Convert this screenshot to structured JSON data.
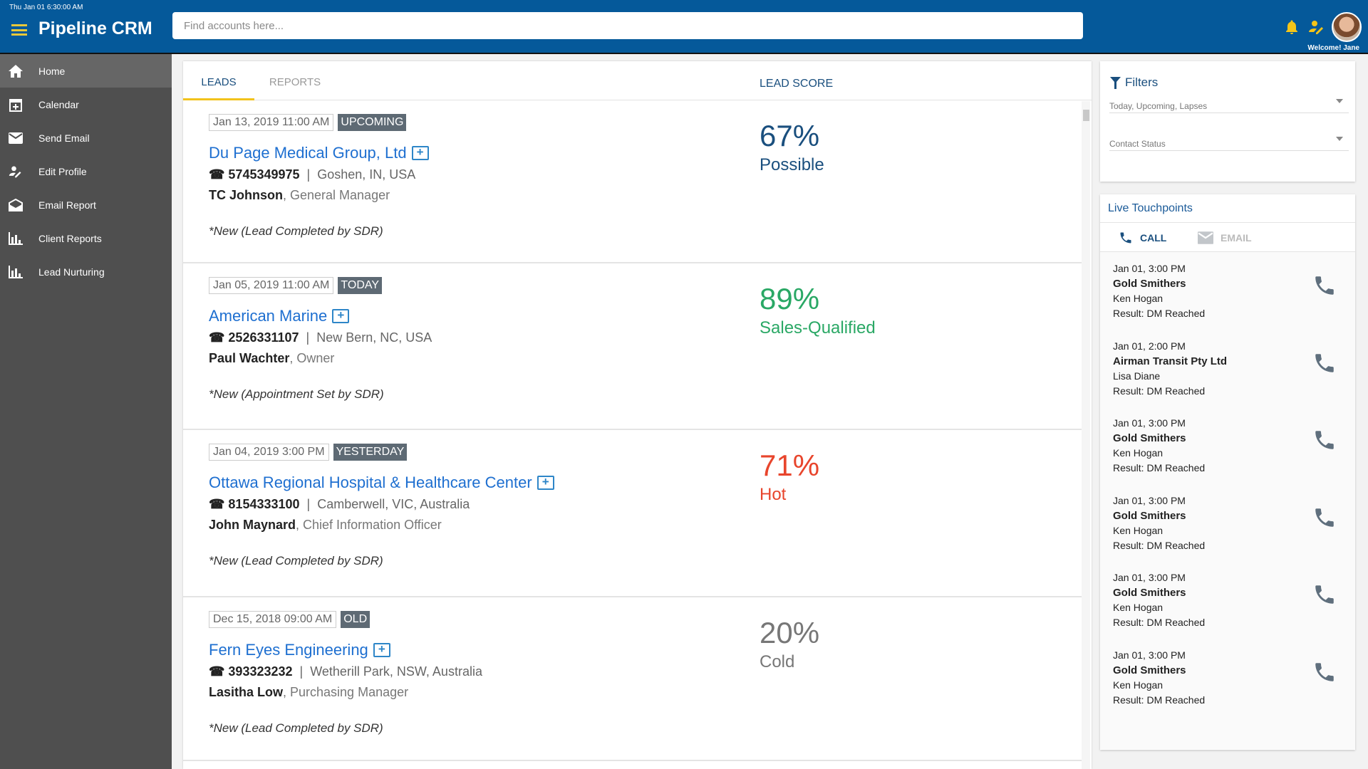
{
  "header": {
    "clock": "Thu Jan 01 6:30:00 AM",
    "title": "Pipeline CRM",
    "search_placeholder": "Find accounts here...",
    "welcome": "Welcome! Jane"
  },
  "sidebar": {
    "items": [
      {
        "label": "Home",
        "icon": "home-icon"
      },
      {
        "label": "Calendar",
        "icon": "calendar-icon"
      },
      {
        "label": "Send Email",
        "icon": "email-icon"
      },
      {
        "label": "Edit Profile",
        "icon": "edit-profile-icon"
      },
      {
        "label": "Email Report",
        "icon": "email-report-icon"
      },
      {
        "label": "Client Reports",
        "icon": "bar-chart-icon"
      },
      {
        "label": "Lead Nurturing",
        "icon": "bar-chart-icon"
      }
    ]
  },
  "main": {
    "tabs": [
      "LEADS",
      "REPORTS"
    ],
    "lead_score_header": "LEAD SCORE",
    "leads": [
      {
        "date": "Jan 13, 2019 11:00 AM",
        "badge": "UPCOMING",
        "company": "Du Page Medical Group, Ltd",
        "phone": "5745349975",
        "location": "Goshen, IN, USA",
        "contact": "TC Johnson",
        "role": ", General Manager",
        "note": "*New (Lead Completed by SDR)",
        "score": "67%",
        "score_label": "Possible",
        "color": "#1a4f7e"
      },
      {
        "date": "Jan 05, 2019 11:00 AM",
        "badge": "TODAY",
        "company": "American Marine",
        "phone": "2526331107",
        "location": "New Bern, NC, USA",
        "contact": "Paul Wachter",
        "role": ", Owner",
        "note": "*New (Appointment Set by SDR)",
        "score": "89%",
        "score_label": "Sales-Qualified",
        "color": "#2aa865"
      },
      {
        "date": "Jan 04, 2019 3:00 PM",
        "badge": "YESTERDAY",
        "company": "Ottawa Regional Hospital & Healthcare Center",
        "phone": "8154333100",
        "location": "Camberwell, VIC, Australia",
        "contact": "John Maynard",
        "role": ", Chief Information Officer",
        "note": "*New (Lead Completed by SDR)",
        "score": "71%",
        "score_label": "Hot",
        "color": "#e8452c"
      },
      {
        "date": "Dec 15, 2018 09:00 AM",
        "badge": "OLD",
        "company": "Fern Eyes Engineering",
        "phone": "393323232",
        "location": "Wetherill Park, NSW, Australia",
        "contact": "Lasitha Low",
        "role": ", Purchasing Manager",
        "note": "*New (Lead Completed by SDR)",
        "score": "20%",
        "score_label": "Cold",
        "color": "#777777"
      }
    ]
  },
  "filters": {
    "title": "Filters",
    "select1": "Today, Upcoming, Lapses",
    "select2": "Contact Status"
  },
  "touchpoints": {
    "title": "Live Touchpoints",
    "tabs": [
      "CALL",
      "EMAIL"
    ],
    "items": [
      {
        "time": "Jan 01, 3:00 PM",
        "company": "Gold Smithers",
        "contact": "Ken Hogan",
        "result": "Result: DM Reached"
      },
      {
        "time": "Jan 01, 2:00 PM",
        "company": "Airman Transit Pty Ltd",
        "contact": "Lisa Diane",
        "result": "Result: DM Reached"
      },
      {
        "time": "Jan 01, 3:00 PM",
        "company": "Gold Smithers",
        "contact": "Ken Hogan",
        "result": "Result: DM Reached"
      },
      {
        "time": "Jan 01, 3:00 PM",
        "company": "Gold Smithers",
        "contact": "Ken Hogan",
        "result": "Result: DM Reached"
      },
      {
        "time": "Jan 01, 3:00 PM",
        "company": "Gold Smithers",
        "contact": "Ken Hogan",
        "result": "Result: DM Reached"
      },
      {
        "time": "Jan 01, 3:00 PM",
        "company": "Gold Smithers",
        "contact": "Ken Hogan",
        "result": "Result: DM Reached"
      }
    ]
  }
}
